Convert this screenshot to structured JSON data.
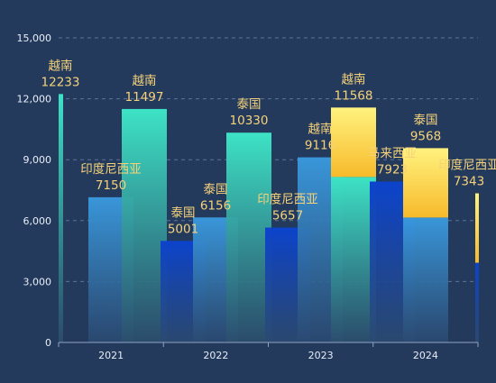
{
  "chart_data": {
    "type": "bar",
    "categories": [
      "2021",
      "2022",
      "2023",
      "2024"
    ],
    "ylim": [
      0,
      15000
    ],
    "yticks": [
      "0",
      "3,000",
      "6,000",
      "9,000",
      "12,000",
      "15,000"
    ],
    "grid": true,
    "bars": [
      {
        "category": "2021",
        "label": "越南",
        "value": 12233,
        "style": "teal"
      },
      {
        "category": "2021",
        "label": "印度尼西亚",
        "value": 7150,
        "style": "blue"
      },
      {
        "category": "2021",
        "label": "越南",
        "value": 11497,
        "style": "teal"
      },
      {
        "category": "2022",
        "label": "泰国",
        "value": 5001,
        "style": "deep"
      },
      {
        "category": "2022",
        "label": "泰国",
        "value": 6156,
        "style": "blue"
      },
      {
        "category": "2022",
        "label": "泰国",
        "value": 10330,
        "style": "teal"
      },
      {
        "category": "2023",
        "label": "印度尼西亚",
        "value": 5657,
        "style": "deep"
      },
      {
        "category": "2023",
        "label": "越南",
        "value": 9116,
        "style": "blue"
      },
      {
        "category": "2023",
        "label": "越南",
        "value": 11568,
        "style": "gold_teal"
      },
      {
        "category": "2024",
        "label": "马来西亚",
        "value": 7923,
        "style": "deep"
      },
      {
        "category": "2024",
        "label": "泰国",
        "value": 9568,
        "style": "gold_blue"
      },
      {
        "category": "2024",
        "label": "印度尼西亚",
        "value": 7343,
        "style": "gold_deep"
      }
    ],
    "colors": {
      "background": "#243a5c",
      "teal_top": "#3de3c5",
      "teal_bottom": "#2c4f6e",
      "blue_top": "#3a9be0",
      "blue_bottom": "#2b4a72",
      "deep_top": "#0c43cc",
      "deep_bottom": "#2b4a72",
      "gold_top": "#fff27e",
      "gold_bottom": "#f7ba2b",
      "label": "#f5d27a",
      "axis_text": "#e8eef8",
      "grid": "#5d7397"
    }
  }
}
